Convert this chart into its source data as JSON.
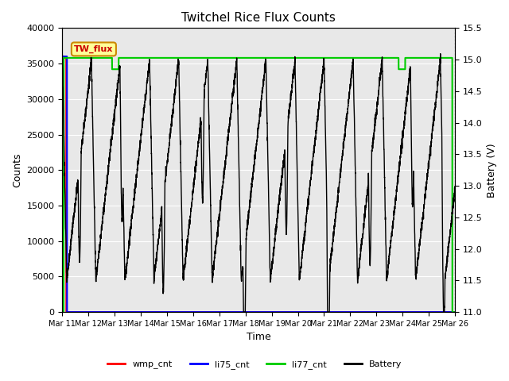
{
  "title": "Twitchel Rice Flux Counts",
  "xlabel": "Time",
  "ylabel_left": "Counts",
  "ylabel_right": "Battery (V)",
  "ylim_left": [
    0,
    40000
  ],
  "ylim_right": [
    11.0,
    15.5
  ],
  "xtick_labels": [
    "Mar 11",
    "Mar 12",
    "Mar 13",
    "Mar 14",
    "Mar 15",
    "Mar 16",
    "Mar 17",
    "Mar 18",
    "Mar 19",
    "Mar 20",
    "Mar 21",
    "Mar 22",
    "Mar 23",
    "Mar 24",
    "Mar 25",
    "Mar 26"
  ],
  "xtick_positions": [
    0,
    1,
    2,
    3,
    4,
    5,
    6,
    7,
    8,
    9,
    10,
    11,
    12,
    13,
    14,
    15
  ],
  "bg_color": "#e8e8e8",
  "legend_box_facecolor": "#ffff99",
  "legend_box_edgecolor": "#cc8800",
  "legend_text_color": "#cc0000",
  "legend_label": "TW_flux",
  "wmp_color": "#ff0000",
  "li75_color": "#0000ff",
  "li77_color": "#00cc00",
  "battery_color": "#000000",
  "grid_color": "#ffffff",
  "figure_bg": "#ffffff"
}
